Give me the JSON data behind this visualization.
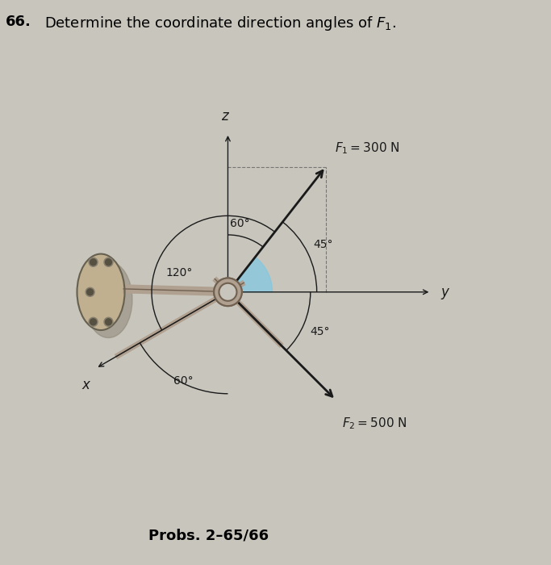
{
  "title_num": "66.",
  "title_text": "  Determine the coordinate direction angles of $F_1$.",
  "subtitle": "Probs. 2–65/66",
  "background_color": "#c8c5bc",
  "f1_label": "$F_1 = 300$ N",
  "f2_label": "$F_2 = 500$ N",
  "x_label": "x",
  "y_label": "y",
  "z_label": "z",
  "lbl_60_upper": "60°",
  "lbl_120": "120°",
  "lbl_45_upper": "45°",
  "lbl_45_lower": "45°",
  "lbl_60_lower": "60°",
  "dark_color": "#1a1a1a",
  "blue_fill": "#7ec8e3",
  "wall_fill": "#c0b090",
  "wall_shadow": "#6b6050",
  "rod_color": "#b0a090",
  "rod_dark": "#706050",
  "bolt_color": "#555040"
}
